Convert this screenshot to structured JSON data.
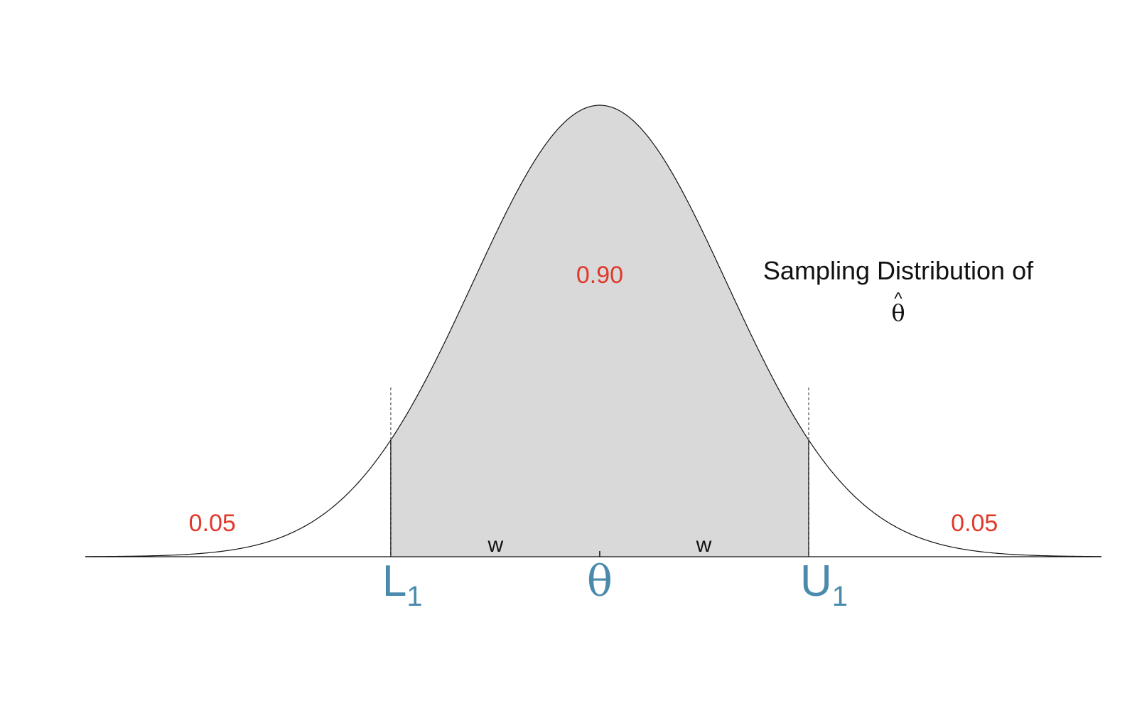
{
  "colors": {
    "curve": "#111111",
    "fill": "#d9d9d9",
    "axis": "#111111",
    "guide": "#777777",
    "probability_label": "#e0392b",
    "tick_label": "#4a8aad",
    "text": "#111111"
  },
  "chart_data": {
    "type": "area",
    "distribution": "normal",
    "mean": 0,
    "sd": 1,
    "xlim": [
      -4.05,
      3.95
    ],
    "grid": false,
    "shaded_region": [
      -1.645,
      1.645
    ],
    "tail_probabilities": {
      "left": "0.05",
      "right": "0.05"
    },
    "center_probability": "0.90",
    "annotations": {
      "curve_label_line1": "Sampling Distribution of",
      "curve_label_line2_base": "θ",
      "curve_label_line2_hat": "^",
      "half_width_left": "w",
      "half_width_right": "w"
    },
    "tick_labels": {
      "lower_base": "L",
      "lower_sub": "1",
      "center": "θ",
      "upper_base": "U",
      "upper_sub": "1"
    }
  }
}
